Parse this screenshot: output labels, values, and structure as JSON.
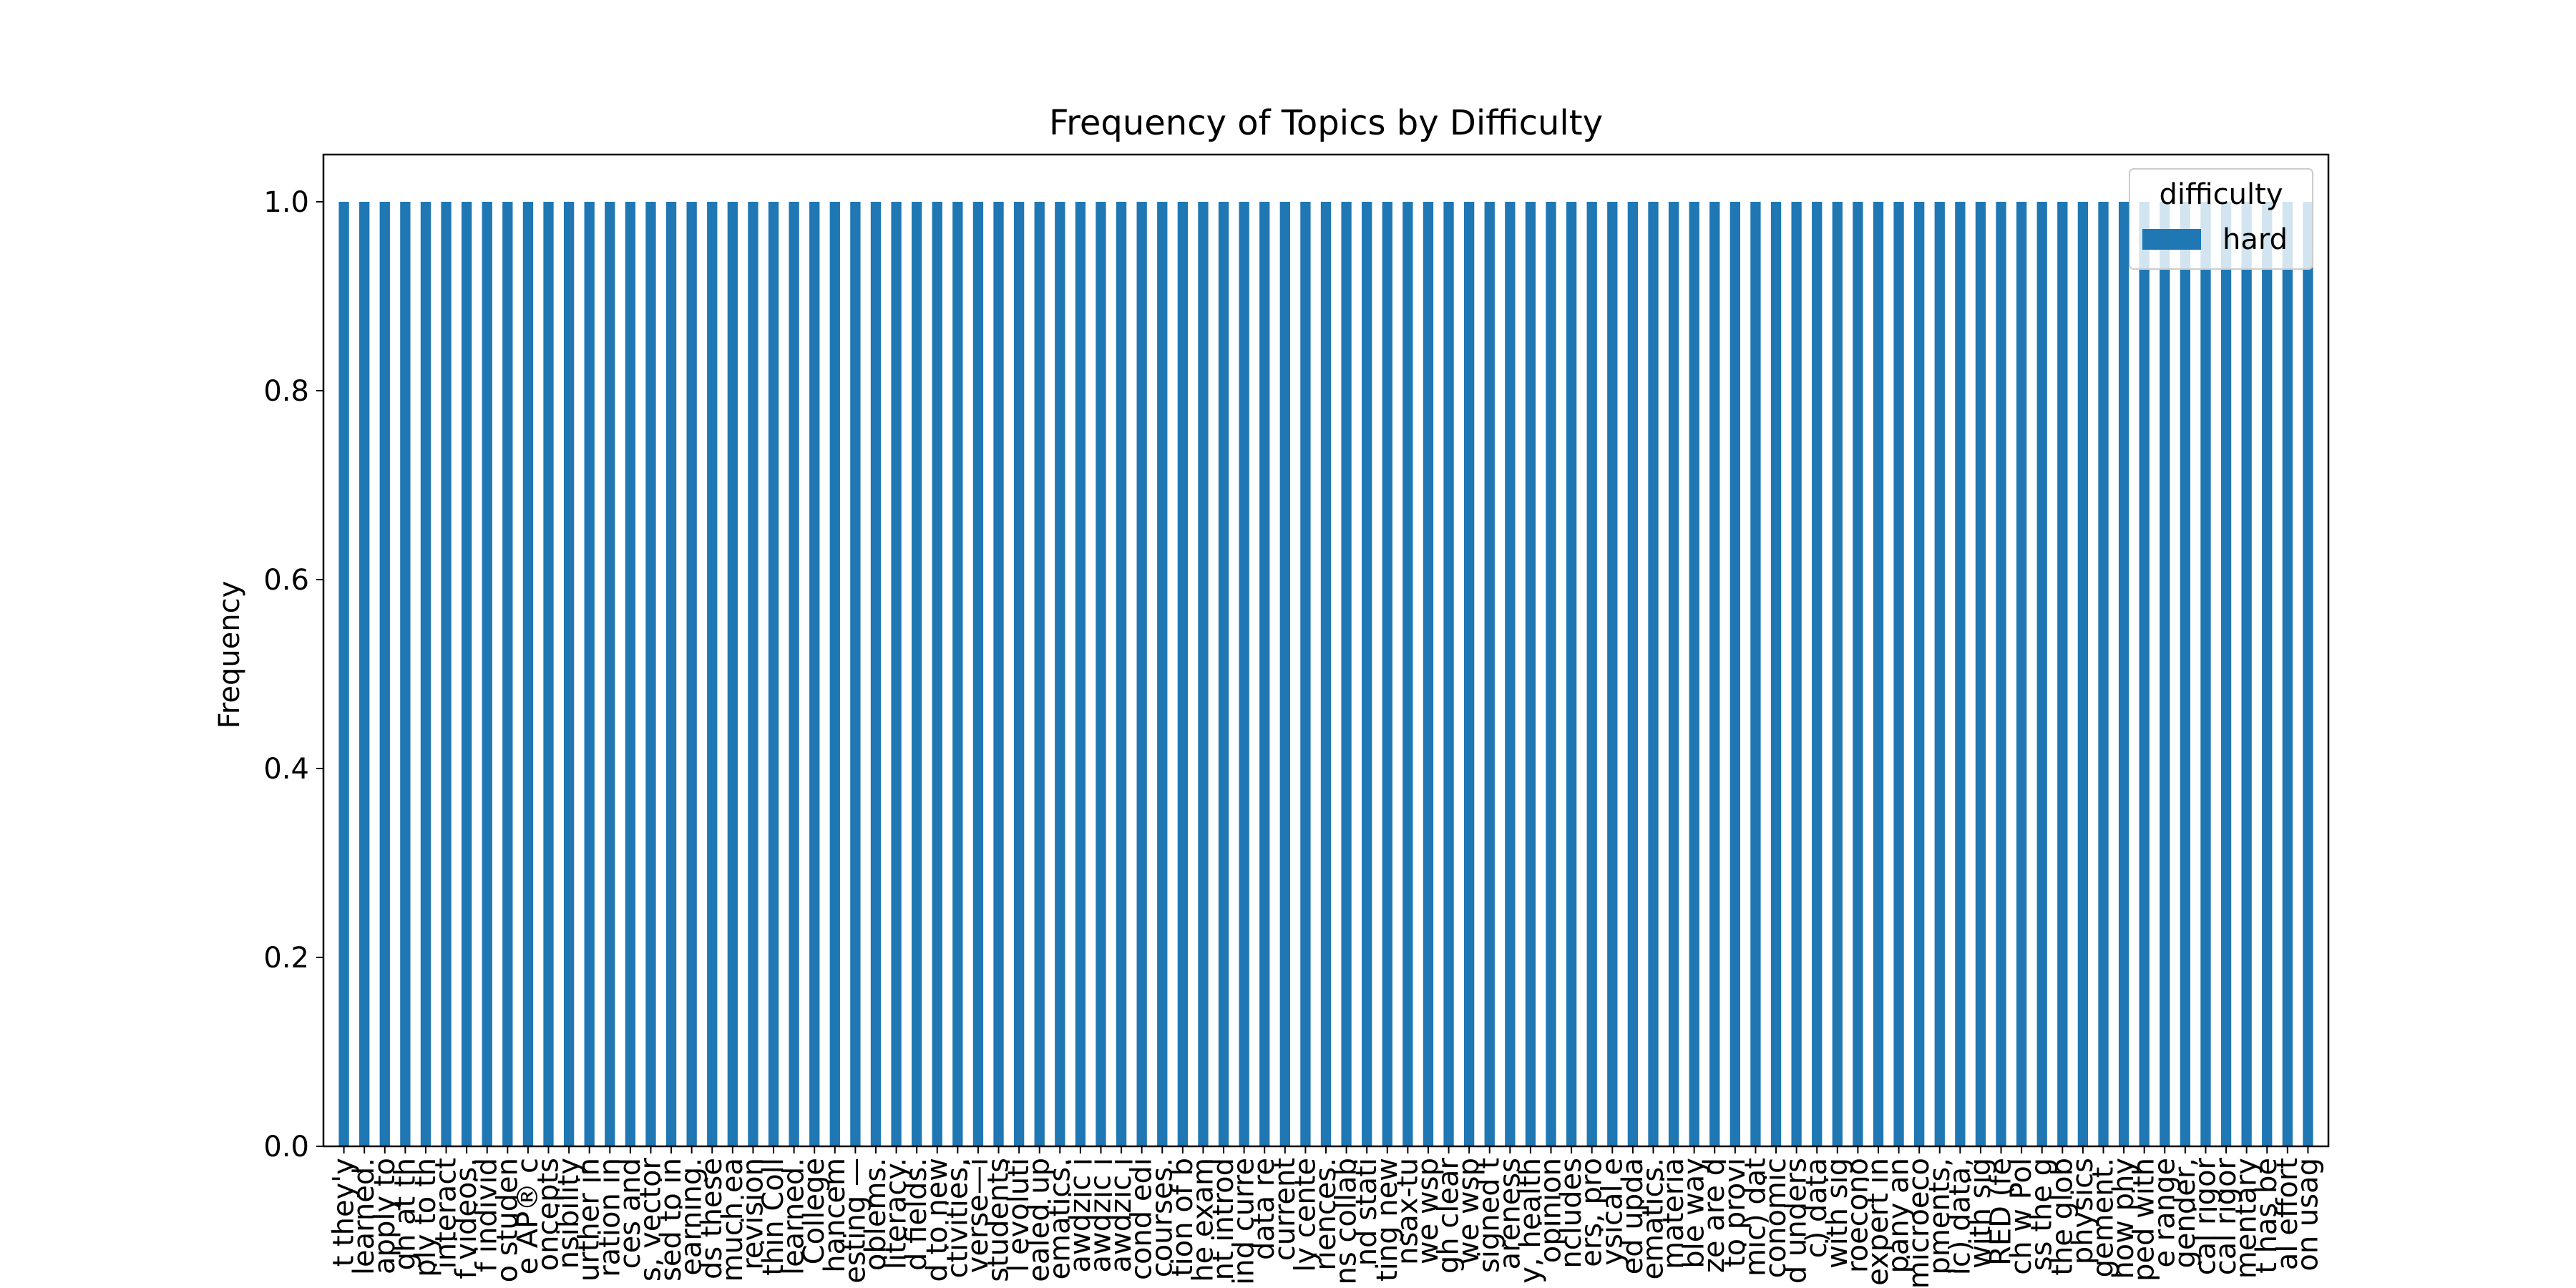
{
  "chart_data": {
    "type": "bar",
    "title": "Frequency of Topics by Difficulty",
    "xlabel": "",
    "ylabel": "Frequency",
    "ylim": [
      0,
      1.05
    ],
    "yticks": [
      0.0,
      0.2,
      0.4,
      0.6,
      0.8,
      1.0
    ],
    "ytick_labels": [
      "0.0",
      "0.2",
      "0.4",
      "0.6",
      "0.8",
      "1.0"
    ],
    "grid": false,
    "legend": {
      "title": "difficulty",
      "position": "top-right"
    },
    "colors": {
      "hard": "#1f77b4"
    },
    "categories": [
      "t they'y",
      "learned.",
      "apply to",
      "gh at th",
      "ply to th",
      "interact",
      "f videos.",
      "f individ",
      "o studen",
      "e AP® c",
      "oncepts",
      "nsibility",
      "urther in",
      "ration in",
      "ces and",
      "s, vector",
      "sed to in",
      "earning.",
      "ds these",
      "much ea",
      "revision",
      "thin Coll",
      "learned.",
      "College",
      "hancem",
      "esting —",
      "oblems.",
      "literacy.",
      "d fields.",
      "d to new",
      "ctivities,",
      "verse—i",
      "students",
      "l evoluti",
      "ealed up",
      "ematics.",
      "awdzic i",
      "awdzic i",
      "awdzic i",
      "cond edi",
      "courses.",
      "tion of b",
      "he exam",
      "nt introd",
      "ind curre",
      "data re",
      "current",
      "ly cente",
      "riences.",
      "ns collab",
      "nd stati",
      "ting new",
      "nsax-tu",
      "we wsp",
      "gh clear",
      "we wsp",
      "signed t",
      "areness",
      "y, health",
      "opinion",
      "ncludes",
      "ers, pro",
      "ysical e",
      "ed upda",
      "ematics.",
      "materia",
      "ble way",
      "ze are d",
      "to provi",
      "mic) dat",
      "conomic",
      "d unders",
      "c) data",
      "with sig",
      "roecono",
      "expert in",
      "pany an",
      "microeco",
      "pments,",
      "ic) data,",
      "with sig",
      "RED (fe",
      "ch w Pol",
      "ss the g",
      "the glob",
      "physics",
      "gement.",
      "how phy",
      "ped with",
      "e range",
      "gender,",
      "cal rigor",
      "cal rigor",
      "mentary",
      "t has be",
      "al effort",
      "on usag"
    ],
    "series": [
      {
        "name": "hard",
        "values": [
          1,
          1,
          1,
          1,
          1,
          1,
          1,
          1,
          1,
          1,
          1,
          1,
          1,
          1,
          1,
          1,
          1,
          1,
          1,
          1,
          1,
          1,
          1,
          1,
          1,
          1,
          1,
          1,
          1,
          1,
          1,
          1,
          1,
          1,
          1,
          1,
          1,
          1,
          1,
          1,
          1,
          1,
          1,
          1,
          1,
          1,
          1,
          1,
          1,
          1,
          1,
          1,
          1,
          1,
          1,
          1,
          1,
          1,
          1,
          1,
          1,
          1,
          1,
          1,
          1,
          1,
          1,
          1,
          1,
          1,
          1,
          1,
          1,
          1,
          1,
          1,
          1,
          1,
          1,
          1,
          1,
          1,
          1,
          1,
          1,
          1,
          1,
          1,
          1,
          1,
          1,
          1,
          1,
          1,
          1,
          1,
          1
        ]
      }
    ]
  }
}
